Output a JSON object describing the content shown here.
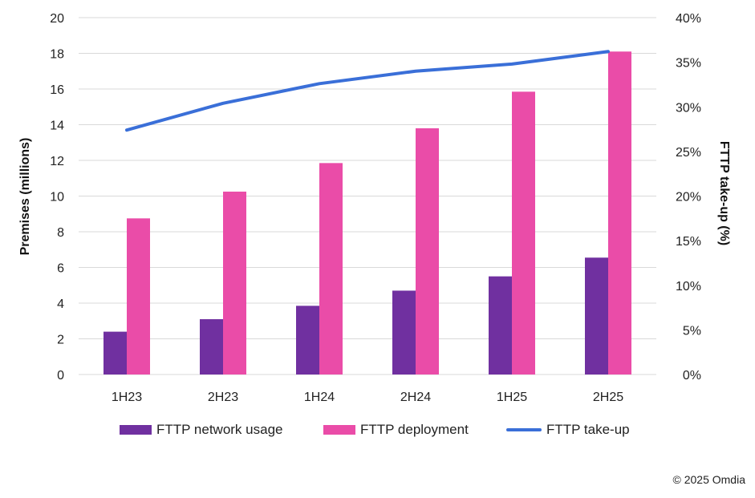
{
  "chart_data": {
    "type": "bar",
    "categories": [
      "1H23",
      "2H23",
      "1H24",
      "2H24",
      "1H25",
      "2H25"
    ],
    "series": [
      {
        "name": "FTTP network usage",
        "type": "bar",
        "axis": "left",
        "color": "#7030a0",
        "values": [
          2.4,
          3.1,
          3.85,
          4.7,
          5.5,
          6.55
        ]
      },
      {
        "name": "FTTP deployment",
        "type": "bar",
        "axis": "left",
        "color": "#ea4ca8",
        "values": [
          8.75,
          10.25,
          11.85,
          13.8,
          15.85,
          18.1
        ]
      },
      {
        "name": "FTTP take-up",
        "type": "line",
        "axis": "right",
        "color": "#3a6fd8",
        "values": [
          27.4,
          30.4,
          32.6,
          34.0,
          34.8,
          36.2
        ]
      }
    ],
    "ylabel": "Premises (millions)",
    "y2label": "FTTP take-up (%)",
    "ylim": [
      0,
      20
    ],
    "y2lim": [
      0,
      40
    ],
    "yticks": [
      "0",
      "2",
      "4",
      "6",
      "8",
      "10",
      "12",
      "14",
      "16",
      "18",
      "20"
    ],
    "y2ticks": [
      "0%",
      "5%",
      "10%",
      "15%",
      "20%",
      "25%",
      "30%",
      "35%",
      "40%"
    ],
    "grid": true,
    "legend_position": "bottom"
  },
  "legend": {
    "items": [
      "FTTP network usage",
      "FTTP deployment",
      "FTTP take-up"
    ]
  },
  "footer": {
    "copyright": "© 2025 Omdia"
  }
}
